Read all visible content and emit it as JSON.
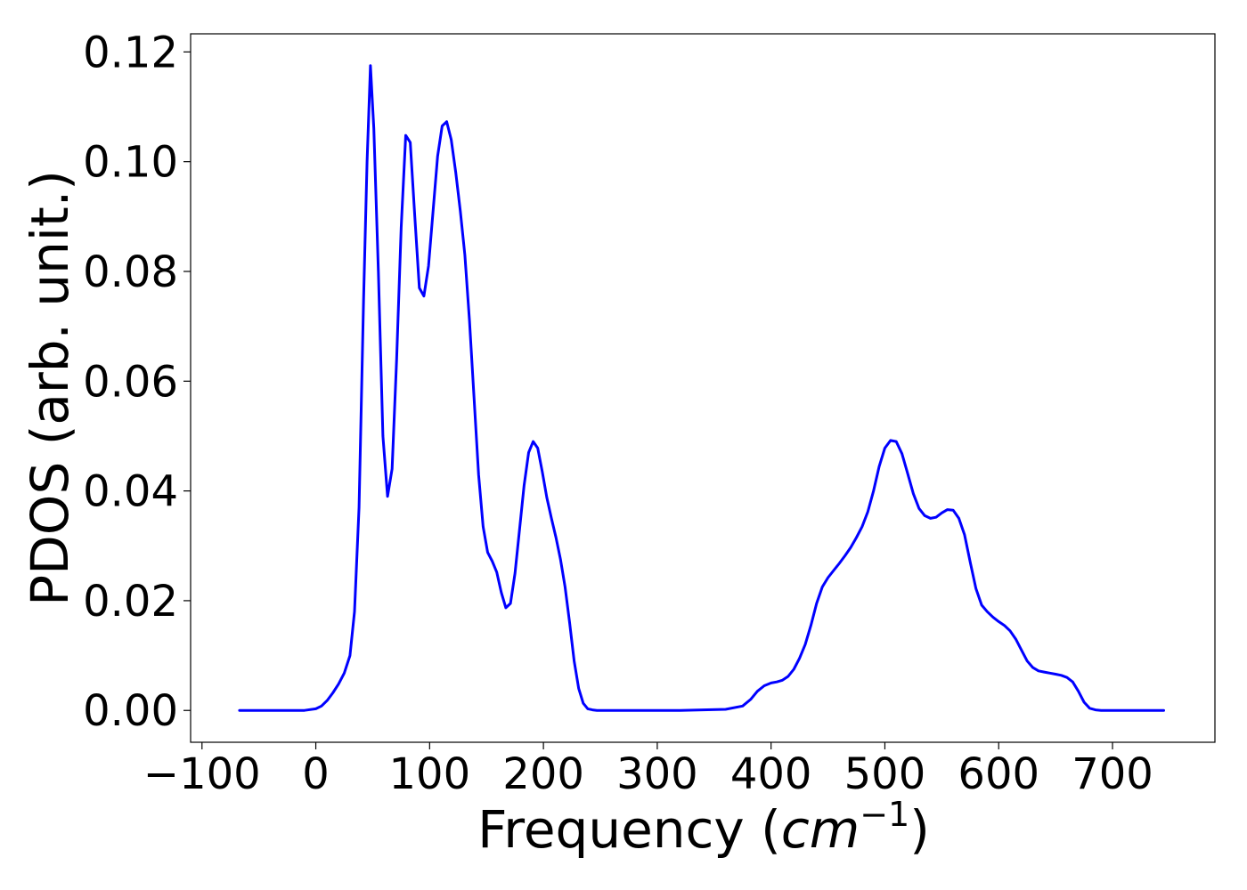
{
  "chart_data": {
    "type": "line",
    "title": "",
    "xlabel_text": "Frequency (",
    "xlabel_unit_base": "cm",
    "xlabel_unit_exp": "−1",
    "xlabel_close": ")",
    "ylabel": "PDOS (arb. unit.)",
    "xlim": [
      -110,
      790
    ],
    "ylim": [
      -0.0058,
      0.1233
    ],
    "xticks": [
      -100,
      0,
      100,
      200,
      300,
      400,
      500,
      600,
      700
    ],
    "xtick_labels": [
      "−100",
      "0",
      "100",
      "200",
      "300",
      "400",
      "500",
      "600",
      "700"
    ],
    "yticks": [
      0.0,
      0.02,
      0.04,
      0.06,
      0.08,
      0.1,
      0.12
    ],
    "ytick_labels": [
      "0.00",
      "0.02",
      "0.04",
      "0.06",
      "0.08",
      "0.10",
      "0.12"
    ],
    "grid": false,
    "legend": "none",
    "series": [
      {
        "color": "#0000ff",
        "x": [
          -67,
          -40,
          -10,
          0,
          5,
          10,
          15,
          20,
          25,
          30,
          34,
          38,
          42,
          45,
          48,
          51,
          55,
          59,
          63,
          67,
          71,
          75,
          79,
          83,
          87,
          91,
          95,
          99,
          103,
          107,
          111,
          115,
          119,
          123,
          127,
          131,
          135,
          139,
          143,
          147,
          151,
          155,
          159,
          163,
          167,
          171,
          175,
          179,
          183,
          187,
          191,
          195,
          199,
          203,
          207,
          211,
          215,
          219,
          223,
          227,
          231,
          235,
          239,
          243,
          247,
          251,
          255,
          260,
          280,
          320,
          360,
          375,
          382,
          388,
          394,
          400,
          405,
          410,
          415,
          420,
          425,
          430,
          435,
          440,
          445,
          450,
          455,
          460,
          465,
          470,
          475,
          480,
          485,
          490,
          495,
          500,
          505,
          510,
          515,
          520,
          525,
          530,
          535,
          540,
          545,
          550,
          555,
          560,
          565,
          570,
          575,
          580,
          585,
          590,
          595,
          600,
          605,
          610,
          615,
          620,
          625,
          630,
          635,
          640,
          645,
          650,
          655,
          660,
          665,
          670,
          675,
          680,
          685,
          690,
          700,
          720,
          745
        ],
        "y": [
          0.0,
          0.0,
          0.0,
          0.0003,
          0.0008,
          0.0018,
          0.0032,
          0.0048,
          0.0068,
          0.01,
          0.018,
          0.037,
          0.075,
          0.1,
          0.1175,
          0.106,
          0.08,
          0.05,
          0.039,
          0.044,
          0.064,
          0.088,
          0.1048,
          0.1035,
          0.09,
          0.077,
          0.0755,
          0.081,
          0.091,
          0.101,
          0.1065,
          0.1073,
          0.104,
          0.098,
          0.091,
          0.083,
          0.071,
          0.057,
          0.043,
          0.0335,
          0.0288,
          0.0272,
          0.0252,
          0.0215,
          0.0187,
          0.0195,
          0.025,
          0.033,
          0.041,
          0.047,
          0.049,
          0.0478,
          0.0435,
          0.0388,
          0.035,
          0.0315,
          0.0275,
          0.0225,
          0.016,
          0.009,
          0.004,
          0.0013,
          0.0003,
          0.0001,
          0.0,
          0.0,
          0.0,
          0.0,
          0.0,
          0.0,
          0.0002,
          0.0008,
          0.002,
          0.0035,
          0.0045,
          0.005,
          0.0052,
          0.0055,
          0.0062,
          0.0075,
          0.0095,
          0.012,
          0.0155,
          0.0195,
          0.0225,
          0.0242,
          0.0255,
          0.0268,
          0.0282,
          0.0297,
          0.0315,
          0.0335,
          0.0362,
          0.04,
          0.0445,
          0.0478,
          0.0492,
          0.049,
          0.0468,
          0.0432,
          0.0395,
          0.0368,
          0.0355,
          0.035,
          0.0352,
          0.036,
          0.0366,
          0.0365,
          0.035,
          0.032,
          0.027,
          0.0222,
          0.0192,
          0.018,
          0.017,
          0.0162,
          0.0155,
          0.0145,
          0.013,
          0.011,
          0.009,
          0.0078,
          0.0072,
          0.007,
          0.0068,
          0.0066,
          0.0064,
          0.006,
          0.0052,
          0.0035,
          0.0015,
          0.0004,
          0.0001,
          0.0,
          0.0,
          0.0,
          0.0
        ]
      }
    ]
  }
}
